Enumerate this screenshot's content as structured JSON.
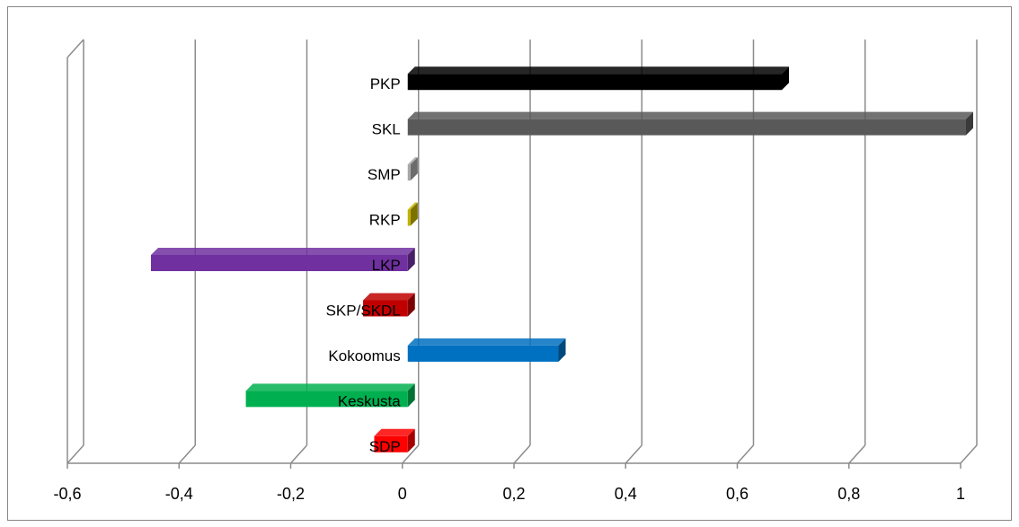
{
  "chart_data": {
    "type": "bar",
    "orientation": "horizontal",
    "three_d": true,
    "title": "",
    "xlabel": "",
    "ylabel": "",
    "categories": [
      "SDP",
      "Keskusta",
      "Kokoomus",
      "SKP/SKDL",
      "LKP",
      "RKP",
      "SMP",
      "SKL",
      "PKP"
    ],
    "values": [
      -0.06,
      -0.29,
      0.27,
      -0.08,
      -0.46,
      0.005,
      0.005,
      1.0,
      0.67
    ],
    "bar_colors": [
      "#ff0000",
      "#00b050",
      "#0070c0",
      "#c00000",
      "#7030a0",
      "#c0b000",
      "#a6a6a6",
      "#595959",
      "#000000"
    ],
    "xlim": [
      -0.6,
      1.0
    ],
    "x_ticks": [
      "-0,6",
      "-0,4",
      "-0,2",
      "0",
      "0,2",
      "0,4",
      "0,6",
      "0,8",
      "1"
    ],
    "x_tick_values": [
      -0.6,
      -0.4,
      -0.2,
      0,
      0.2,
      0.4,
      0.6,
      0.8,
      1.0
    ],
    "grid": true,
    "legend": "none"
  }
}
